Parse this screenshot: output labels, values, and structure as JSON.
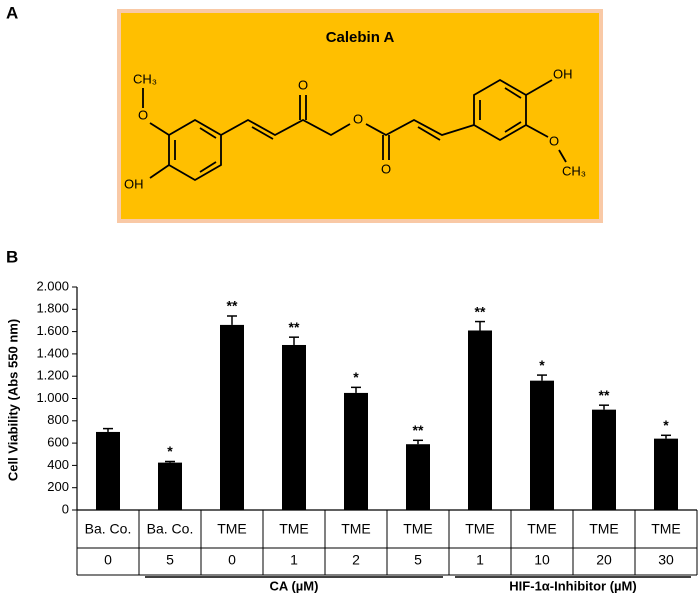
{
  "panel_labels": [
    "A",
    "B"
  ],
  "structure": {
    "title": "Calebin A",
    "atoms": [
      "CH₃",
      "O",
      "OH",
      "O",
      "O",
      "O",
      "OH",
      "O",
      "CH₃"
    ]
  },
  "chart_data": {
    "type": "bar",
    "y_label": "Cell Viability (Abs 550 nm)",
    "categories": [
      "Ba. Co.",
      "Ba. Co.",
      "TME",
      "TME",
      "TME",
      "TME",
      "TME",
      "TME",
      "TME",
      "TME"
    ],
    "doses": [
      "0",
      "5",
      "0",
      "1",
      "2",
      "5",
      "1",
      "10",
      "20",
      "30"
    ],
    "groups": [
      "CA (µM)",
      "HIF-1α-Inhibitor (µM)"
    ],
    "values": [
      700,
      425,
      1660,
      1480,
      1050,
      590,
      1610,
      1160,
      900,
      640
    ],
    "errors": [
      30,
      10,
      80,
      70,
      50,
      35,
      80,
      50,
      40,
      30
    ],
    "annotations": [
      null,
      "*",
      "**",
      "**",
      "*",
      "**",
      "**",
      "*",
      "**",
      "*"
    ],
    "color": "#000000",
    "ylim": [
      0,
      2000
    ],
    "yticks": [
      0,
      200,
      400,
      600,
      800,
      {
        "value": 1000,
        "label": "1.000"
      },
      {
        "value": 1200,
        "label": "1.200"
      },
      {
        "value": 1400,
        "label": "1.400"
      },
      {
        "value": 1600,
        "label": "1.600"
      },
      {
        "value": 1800,
        "label": "1.800"
      },
      {
        "value": 2000,
        "label": "2.000"
      }
    ],
    "grid": false
  }
}
